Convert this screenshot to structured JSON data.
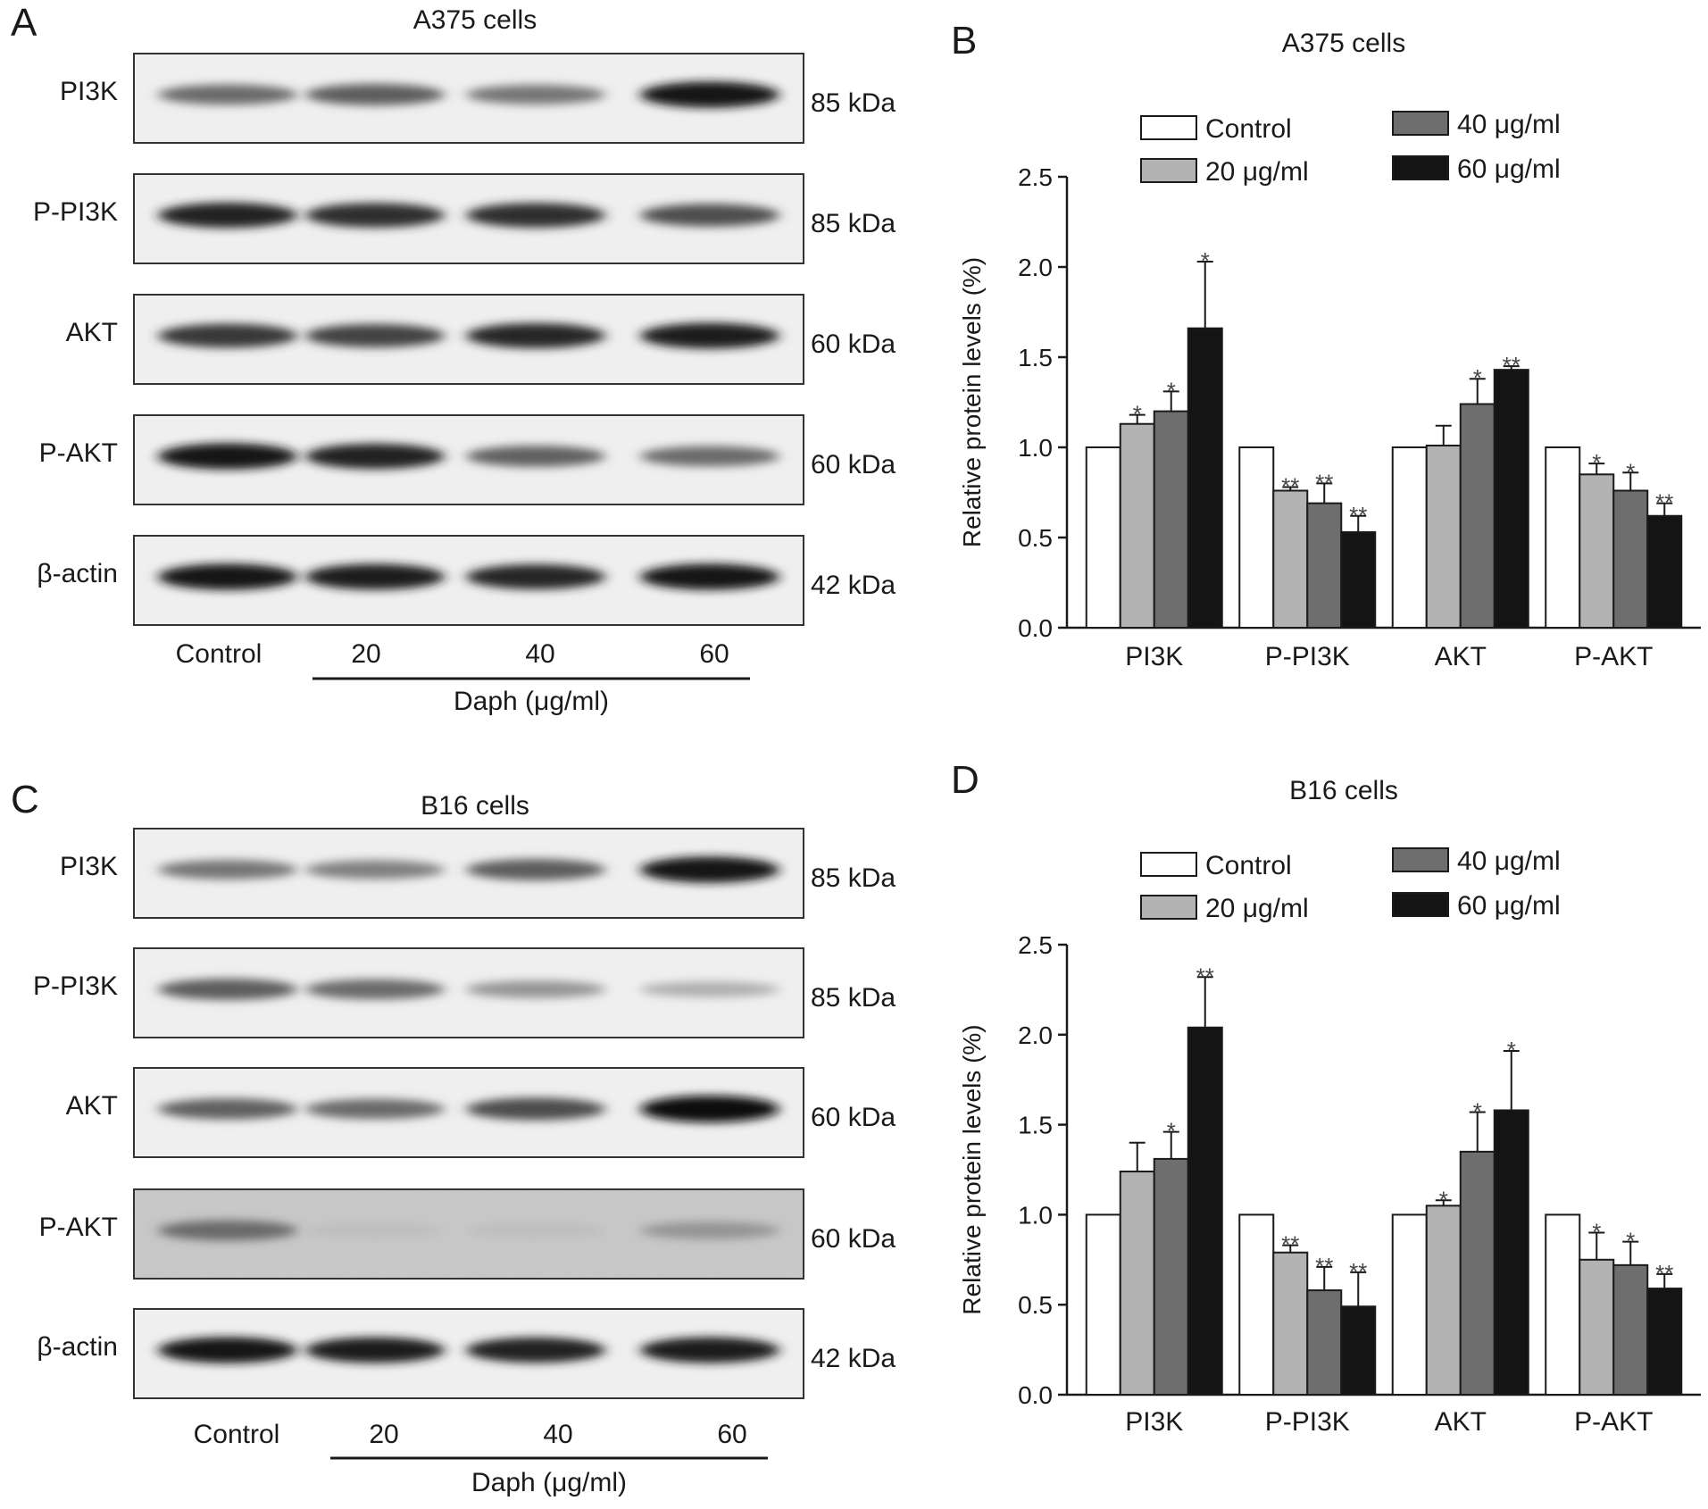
{
  "panels": [
    {
      "letter": "A",
      "title": "A375 cells",
      "blots": [
        {
          "label": "PI3K",
          "kda": "85 kDa",
          "intensity": [
            0.55,
            0.62,
            0.5,
            0.95
          ],
          "noisy": false
        },
        {
          "label": "P-PI3K",
          "kda": "85 kDa",
          "intensity": [
            0.9,
            0.85,
            0.85,
            0.7
          ],
          "noisy": false
        },
        {
          "label": "AKT",
          "kda": "60 kDa",
          "intensity": [
            0.8,
            0.75,
            0.88,
            0.92
          ],
          "noisy": false
        },
        {
          "label": "P-AKT",
          "kda": "60 kDa",
          "intensity": [
            0.95,
            0.9,
            0.6,
            0.55
          ],
          "noisy": false
        },
        {
          "label": "β-actin",
          "kda": "42 kDa",
          "intensity": [
            0.95,
            0.92,
            0.88,
            0.95
          ],
          "noisy": false
        }
      ],
      "lanes": [
        "Control",
        "20",
        "40",
        "60"
      ],
      "xaxis_title": "Daph (μg/ml)"
    },
    {
      "letter": "C",
      "title": "B16 cells",
      "blots": [
        {
          "label": "PI3K",
          "kda": "85 kDa",
          "intensity": [
            0.5,
            0.45,
            0.62,
            0.95
          ],
          "noisy": false
        },
        {
          "label": "P-PI3K",
          "kda": "85 kDa",
          "intensity": [
            0.62,
            0.55,
            0.35,
            0.22
          ],
          "noisy": false
        },
        {
          "label": "AKT",
          "kda": "60 kDa",
          "intensity": [
            0.6,
            0.55,
            0.7,
            1.0
          ],
          "noisy": false
        },
        {
          "label": "P-AKT",
          "kda": "60 kDa",
          "intensity": [
            0.55,
            0.15,
            0.15,
            0.35
          ],
          "noisy": true
        },
        {
          "label": "β-actin",
          "kda": "42 kDa",
          "intensity": [
            0.95,
            0.92,
            0.9,
            0.93
          ],
          "noisy": false
        }
      ],
      "lanes": [
        "Control",
        "20",
        "40",
        "60"
      ],
      "xaxis_title": "Daph (μg/ml)"
    }
  ],
  "chart_data": [
    {
      "letter": "B",
      "type": "bar",
      "title": "A375 cells",
      "ylabel": "Relative protein levels (%)",
      "ylim": [
        0,
        2.5
      ],
      "yticks": [
        "0.0",
        "0.5",
        "1.0",
        "1.5",
        "2.0",
        "2.5"
      ],
      "categories": [
        "PI3K",
        "P-PI3K",
        "AKT",
        "P-AKT"
      ],
      "legend": [
        {
          "name": "Control",
          "color": "#ffffff"
        },
        {
          "name": "20 μg/ml",
          "color": "#b3b3b3"
        },
        {
          "name": "40 μg/ml",
          "color": "#6e6e6e"
        },
        {
          "name": "60 μg/ml",
          "color": "#141414"
        }
      ],
      "series": [
        {
          "name": "Control",
          "color": "#ffffff",
          "values": [
            1.0,
            1.0,
            1.0,
            1.0
          ],
          "errors": [
            0,
            0,
            0,
            0
          ],
          "sig": [
            "",
            "",
            "",
            ""
          ]
        },
        {
          "name": "20 μg/ml",
          "color": "#b3b3b3",
          "values": [
            1.13,
            0.76,
            1.01,
            0.85
          ],
          "errors": [
            0.05,
            0.02,
            0.11,
            0.06
          ],
          "sig": [
            "*",
            "**",
            "",
            "*"
          ]
        },
        {
          "name": "40 μg/ml",
          "color": "#6e6e6e",
          "values": [
            1.2,
            0.69,
            1.24,
            0.76
          ],
          "errors": [
            0.11,
            0.11,
            0.14,
            0.1
          ],
          "sig": [
            "*",
            "**",
            "*",
            "*"
          ]
        },
        {
          "name": "60 μg/ml",
          "color": "#141414",
          "values": [
            1.66,
            0.53,
            1.43,
            0.62
          ],
          "errors": [
            0.37,
            0.09,
            0.02,
            0.07
          ],
          "sig": [
            "*",
            "**",
            "**",
            "**"
          ]
        }
      ]
    },
    {
      "letter": "D",
      "type": "bar",
      "title": "B16 cells",
      "ylabel": "Relative protein levels (%)",
      "ylim": [
        0,
        2.5
      ],
      "yticks": [
        "0.0",
        "0.5",
        "1.0",
        "1.5",
        "2.0",
        "2.5"
      ],
      "categories": [
        "PI3K",
        "P-PI3K",
        "AKT",
        "P-AKT"
      ],
      "legend": [
        {
          "name": "Control",
          "color": "#ffffff"
        },
        {
          "name": "20 μg/ml",
          "color": "#b3b3b3"
        },
        {
          "name": "40 μg/ml",
          "color": "#6e6e6e"
        },
        {
          "name": "60 μg/ml",
          "color": "#141414"
        }
      ],
      "series": [
        {
          "name": "Control",
          "color": "#ffffff",
          "values": [
            1.0,
            1.0,
            1.0,
            1.0
          ],
          "errors": [
            0,
            0,
            0,
            0
          ],
          "sig": [
            "",
            "",
            "",
            ""
          ]
        },
        {
          "name": "20 μg/ml",
          "color": "#b3b3b3",
          "values": [
            1.24,
            0.79,
            1.05,
            0.75
          ],
          "errors": [
            0.16,
            0.04,
            0.03,
            0.15
          ],
          "sig": [
            "",
            "**",
            "*",
            "*"
          ]
        },
        {
          "name": "40 μg/ml",
          "color": "#6e6e6e",
          "values": [
            1.31,
            0.58,
            1.35,
            0.72
          ],
          "errors": [
            0.15,
            0.13,
            0.22,
            0.13
          ],
          "sig": [
            "*",
            "**",
            "*",
            "*"
          ]
        },
        {
          "name": "60 μg/ml",
          "color": "#141414",
          "values": [
            2.04,
            0.49,
            1.58,
            0.59
          ],
          "errors": [
            0.28,
            0.19,
            0.33,
            0.08
          ],
          "sig": [
            "**",
            "**",
            "*",
            "**"
          ]
        }
      ]
    }
  ]
}
